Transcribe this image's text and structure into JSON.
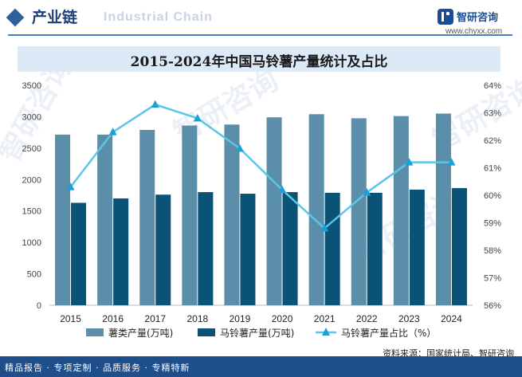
{
  "header": {
    "section_title": "产业链",
    "section_title_watermark": "Industrial Chain",
    "brand_name": "智研咨询",
    "brand_url": "www.chyxx.com"
  },
  "chart_data": {
    "type": "bar",
    "title": "2015-2024年中国马铃薯产量统计及占比",
    "categories": [
      "2015",
      "2016",
      "2017",
      "2018",
      "2019",
      "2020",
      "2021",
      "2022",
      "2023",
      "2024"
    ],
    "series": [
      {
        "name": "薯类产量(万吨)",
        "type": "bar",
        "axis": "left",
        "color": "#5b8ea8",
        "values": [
          2715,
          2715,
          2790,
          2860,
          2875,
          2990,
          3040,
          2975,
          3010,
          3050
        ]
      },
      {
        "name": "马铃薯产量(万吨)",
        "type": "bar",
        "axis": "left",
        "color": "#0b5277",
        "values": [
          1630,
          1700,
          1760,
          1800,
          1775,
          1800,
          1790,
          1790,
          1840,
          1865
        ]
      },
      {
        "name": "马铃薯产量占比（%）",
        "type": "line",
        "axis": "right",
        "color": "#5bc6ea",
        "values": [
          60.3,
          62.3,
          63.3,
          62.8,
          61.7,
          60.2,
          58.8,
          60.1,
          61.2,
          61.2
        ]
      }
    ],
    "y_left": {
      "ylim": [
        0,
        3500
      ],
      "ticks": [
        "0",
        "500",
        "1000",
        "1500",
        "2000",
        "2500",
        "3000",
        "3500"
      ]
    },
    "y_right": {
      "ylim": [
        56,
        64
      ],
      "ticks": [
        "56%",
        "57%",
        "58%",
        "59%",
        "60%",
        "61%",
        "62%",
        "63%",
        "64%"
      ]
    },
    "legend_position": "bottom",
    "grid": false
  },
  "footer": {
    "slogan": "精品报告 · 专项定制 · 品质服务 · 专精特新",
    "source": "资料来源：国家统计局、智研咨询"
  },
  "watermarks": {
    "text": "智研咨询"
  },
  "colors": {
    "header_accent": "#1c3f78",
    "title_bar": "#dce9f6",
    "footer_bg": "#1f4f8a"
  }
}
